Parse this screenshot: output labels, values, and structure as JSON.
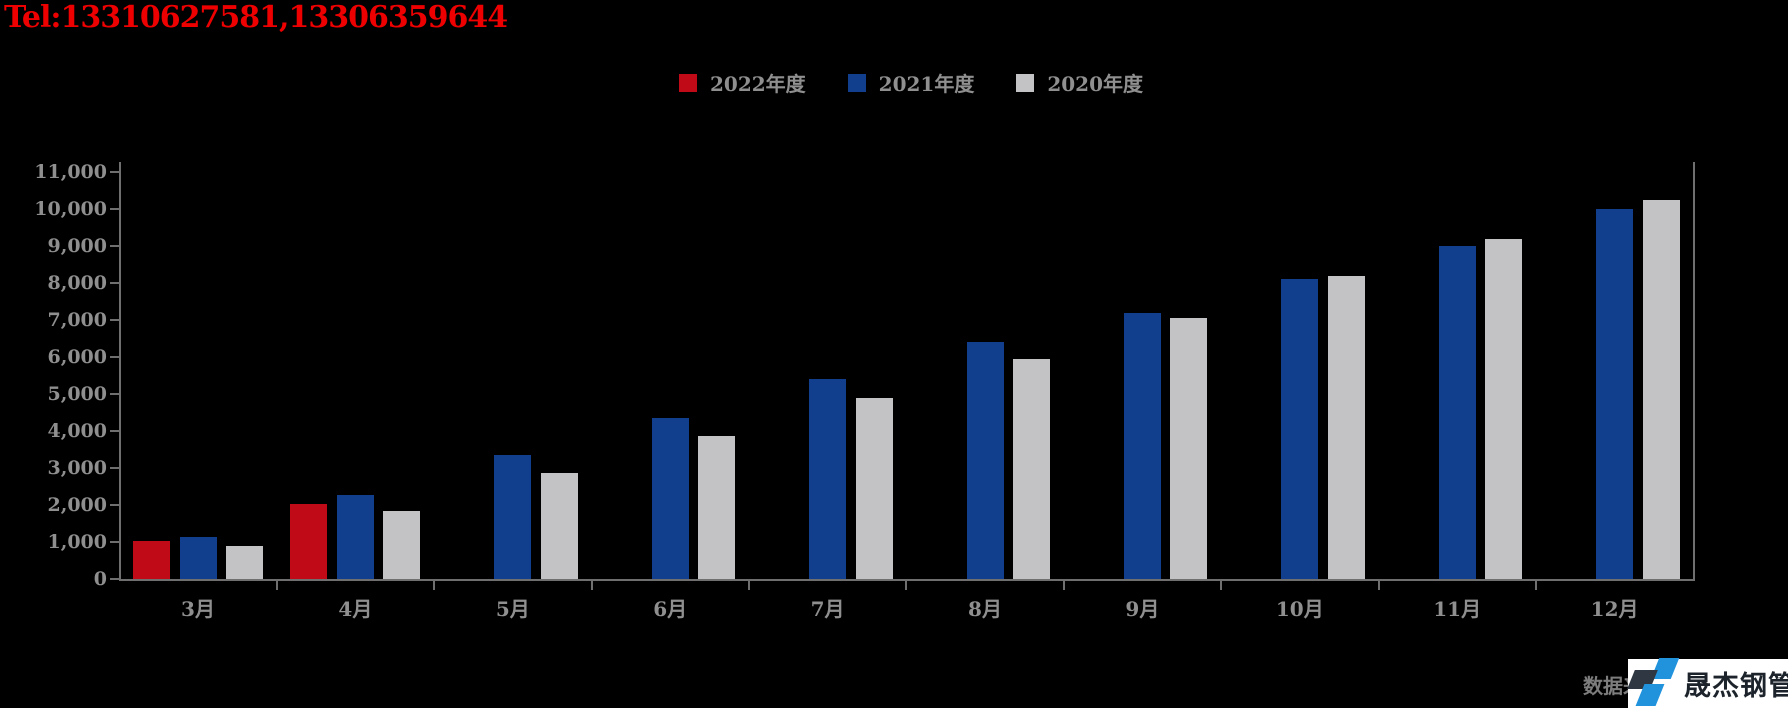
{
  "header": {
    "tel": "Tel:13310627581,13306359644",
    "tel_color": "#ee0000"
  },
  "chart_data": {
    "type": "bar",
    "title": "",
    "xlabel": "",
    "ylabel": "",
    "grid": false,
    "legend_position": "top-center",
    "background": "#000000",
    "axis_color": "#6f6f6f",
    "label_color": "#8f8f8f",
    "categories": [
      "3月",
      "4月",
      "5月",
      "6月",
      "7月",
      "8月",
      "9月",
      "10月",
      "11月",
      "12月"
    ],
    "series": [
      {
        "name": "2022年度",
        "color": "#c00a17",
        "values": [
          1040,
          2040,
          null,
          null,
          null,
          null,
          null,
          null,
          null,
          null
        ]
      },
      {
        "name": "2021年度",
        "color": "#123f8d",
        "values": [
          1130,
          2260,
          3350,
          4350,
          5410,
          6400,
          7190,
          8100,
          9010,
          10000
        ]
      },
      {
        "name": "2020年度",
        "color": "#c3c3c5",
        "values": [
          880,
          1850,
          2870,
          3870,
          4900,
          5950,
          7060,
          8180,
          9200,
          10250
        ]
      }
    ],
    "ylim": [
      0,
      11000
    ],
    "ytick_step": 1000,
    "ytick_labels": [
      "0",
      "1,000",
      "2,000",
      "3,000",
      "4,000",
      "5,000",
      "6,000",
      "7,000",
      "8,000",
      "9,000",
      "10,000",
      "11,000"
    ]
  },
  "footer": {
    "source_label": "数据来源:",
    "logo_text": "晟杰钢管",
    "logo_dark": "#2f3842",
    "logo_blue": "#2193dd"
  }
}
